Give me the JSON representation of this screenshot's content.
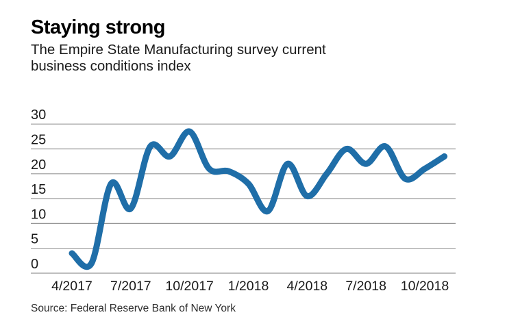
{
  "header": {
    "title": "Staying strong",
    "subtitle_line1": "The Empire State Manufacturing survey current",
    "subtitle_line2": "business conditions index"
  },
  "source": "Source: Federal Reserve Bank of New York",
  "chart_data": {
    "type": "line",
    "title": "Staying strong",
    "subtitle": "The Empire State Manufacturing survey current business conditions index",
    "x": [
      "4/2017",
      "5/2017",
      "6/2017",
      "7/2017",
      "8/2017",
      "9/2017",
      "10/2017",
      "11/2017",
      "12/2017",
      "1/2018",
      "2/2018",
      "3/2018",
      "4/2018",
      "5/2018",
      "6/2018",
      "7/2018",
      "8/2018",
      "9/2018",
      "10/2018",
      "11/2018"
    ],
    "series": [
      {
        "name": "Empire State Manufacturing survey current business conditions index",
        "values": [
          4,
          2,
          18,
          13,
          25.5,
          23.5,
          28.5,
          21,
          20.5,
          18,
          12.5,
          22,
          15.5,
          20,
          25,
          22,
          25.5,
          19,
          21,
          23.5
        ]
      }
    ],
    "x_tick_labels": [
      "4/2017",
      "7/2017",
      "10/2017",
      "1/2018",
      "4/2018",
      "7/2018",
      "10/2018"
    ],
    "y_ticks": [
      0,
      5,
      10,
      15,
      20,
      25,
      30
    ],
    "ylim": [
      0,
      30
    ],
    "grid": true,
    "legend_position": "none",
    "line_color": "#1f6ea8",
    "grid_color": "#979797",
    "tick_label_color": "#1a1a1a",
    "source": "Source: Federal Reserve Bank of New York"
  }
}
